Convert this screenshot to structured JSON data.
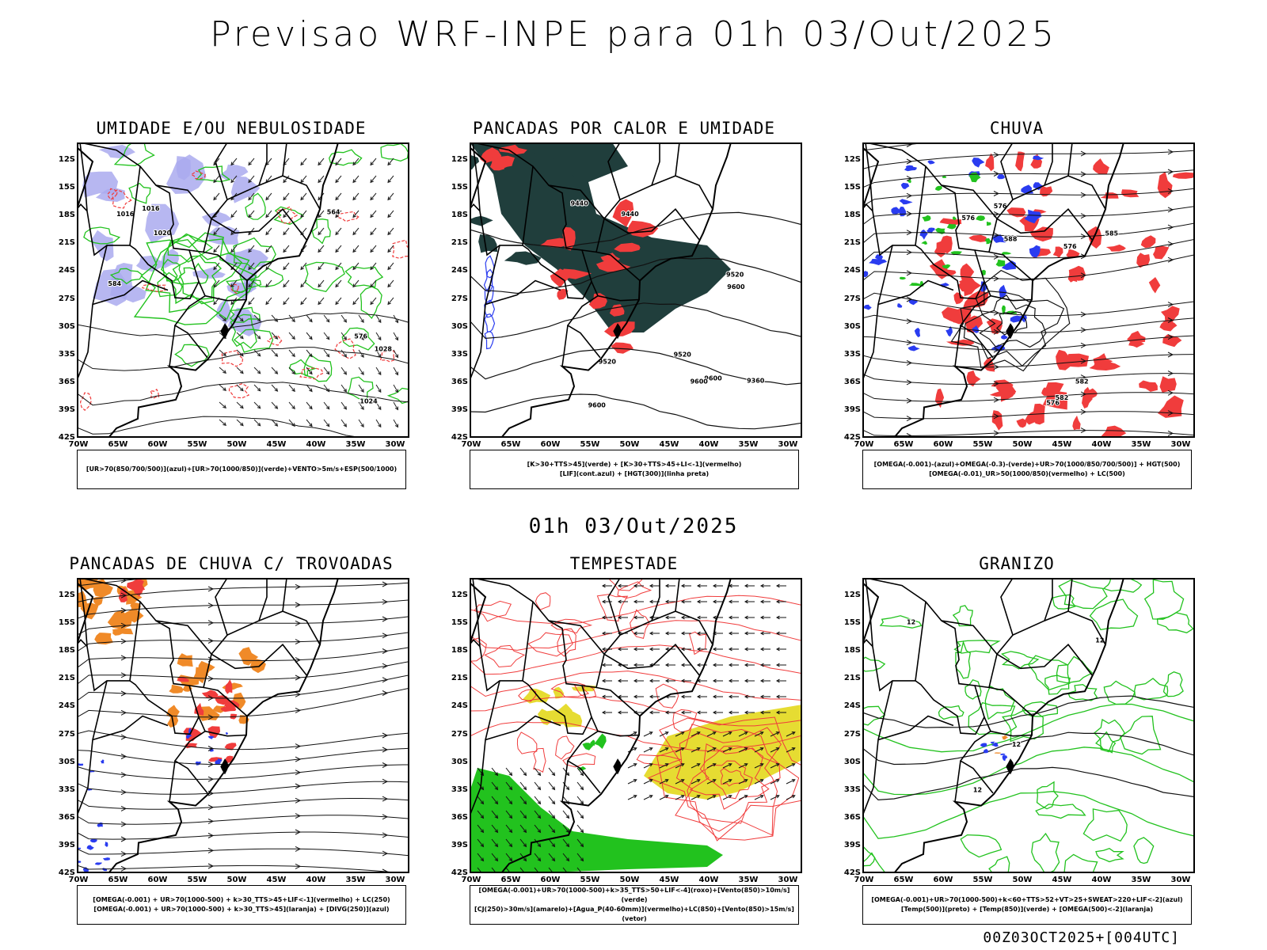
{
  "header": {
    "title": "Previsao WRF-INPE  para 01h 03/Out/2025"
  },
  "mid_date": "01h 03/Out/2025",
  "footer": "00Z03OCT2025+[004UTC]",
  "axes": {
    "lat_labels": [
      "12S",
      "15S",
      "18S",
      "21S",
      "24S",
      "27S",
      "30S",
      "33S",
      "36S",
      "39S",
      "42S"
    ],
    "lon_labels": [
      "70W",
      "65W",
      "60W",
      "55W",
      "50W",
      "45W",
      "40W",
      "35W",
      "30W"
    ]
  },
  "colors": {
    "red": "#f03c3c",
    "green": "#22c21e",
    "blue": "#2a3cf0",
    "purple": "#aaaaee",
    "teal": "#203e3c",
    "orange": "#f08a28",
    "yellow": "#e6dc32"
  },
  "panels": [
    {
      "id": "umidade",
      "title": "UMIDADE E/OU NEBULOSIDADE",
      "legend": [
        "[UR>70(850/700/500)](azul)+[UR>70(1000/850)](verde)+VENTO>5m/s+ESP(500/1000)"
      ],
      "contour_labels": [
        "1016",
        "1016",
        "1020",
        "1024",
        "1028",
        "576",
        "584",
        "564"
      ]
    },
    {
      "id": "pancadas_calor",
      "title": "PANCADAS POR CALOR E UMIDADE",
      "legend": [
        "[K>30+TTS>45](verde) + [K>30+TTS>45+LI<-1](vermelho)",
        "[LIF](cont.azul) + [HGT(300)](linha preta)"
      ],
      "contour_labels": [
        "9600",
        "9520",
        "9600",
        "9600",
        "9600",
        "9520",
        "9520",
        "9440",
        "9440",
        "9360"
      ]
    },
    {
      "id": "chuva",
      "title": "CHUVA",
      "legend": [
        "[OMEGA(-0.001)-(azul)+OMEGA(-0.3)-(verde)+UR>70(1000/850/700/500)] + HGT(500)",
        "[OMEGA(-0.01)_UR>50(1000/850)(vermelho) + LC(500)"
      ],
      "contour_labels": [
        "588",
        "582",
        "576",
        "576",
        "582",
        "585",
        "576",
        "576"
      ]
    },
    {
      "id": "trovoadas",
      "title": "PANCADAS DE CHUVA C/ TROVOADAS",
      "legend": [
        "[OMEGA(-0.001) + UR>70(1000-500) + k>30_TTS>45+LIF<-1](vermelho) + LC(250)",
        "[OMEGA(-0.001) + UR>70(1000-500) + k>30_TTS>45](laranja) + [DIVG(250)](azul)"
      ],
      "contour_labels": []
    },
    {
      "id": "tempestade",
      "title": "TEMPESTADE",
      "legend": [
        "[OMEGA(-0.001)+UR>70(1000-500)+k>35_TTS>50+LIF<-4](roxo)+[Vento(850)>10m/s](verde)",
        "[CJ(250)>30m/s](amarelo)+[Agua_P(40-60mm)](vermelho)+LC(850)+[Vento(850)>15m/s](vetor)"
      ],
      "contour_labels": []
    },
    {
      "id": "granizo",
      "title": "GRANIZO",
      "legend": [
        "[OMEGA(-0.001)+UR>70(1000-500)+k<60+TTS>52+VT>25+SWEAT>220+LIF<-2](azul)",
        "[Temp(500)](preto) + [Temp(850)](verde) + [OMEGA(500)<-2](laranja)"
      ],
      "contour_labels": [
        "12",
        "12",
        "12",
        "12"
      ]
    }
  ]
}
